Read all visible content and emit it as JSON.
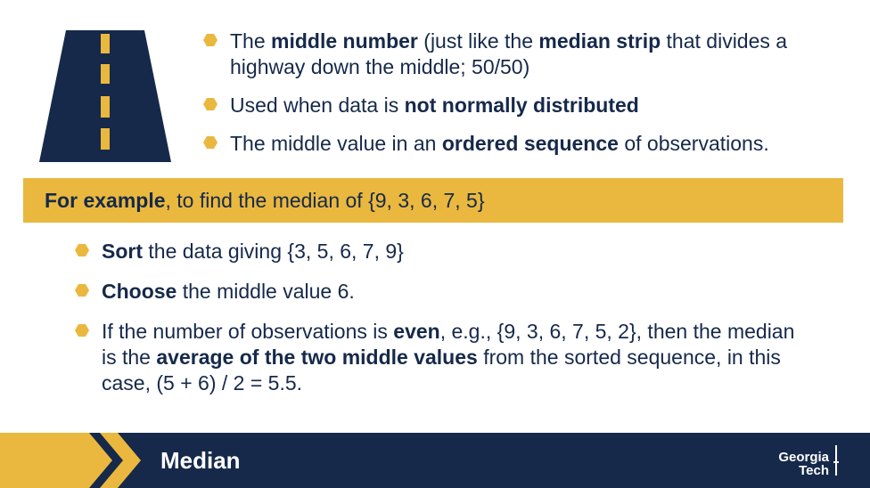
{
  "top_bullets": [
    {
      "segments": [
        {
          "text": "The ",
          "bold": false
        },
        {
          "text": "middle number",
          "bold": true
        },
        {
          "text": " (just like the ",
          "bold": false
        },
        {
          "text": "median strip",
          "bold": true
        },
        {
          "text": " that divides a highway down the middle; 50/50)",
          "bold": false
        }
      ]
    },
    {
      "segments": [
        {
          "text": "Used when data is ",
          "bold": false
        },
        {
          "text": "not normally distributed",
          "bold": true
        }
      ]
    },
    {
      "segments": [
        {
          "text": "The middle value in an ",
          "bold": false
        },
        {
          "text": "ordered sequence",
          "bold": true
        },
        {
          "text": " of observations.",
          "bold": false
        }
      ]
    }
  ],
  "banner": {
    "bold": "For example",
    "rest": ", to find the median of {9, 3, 6, 7, 5}"
  },
  "bottom_bullets": [
    {
      "segments": [
        {
          "text": "Sort",
          "bold": true
        },
        {
          "text": " the data giving {3, 5, 6, 7, 9}",
          "bold": false
        }
      ]
    },
    {
      "segments": [
        {
          "text": "Choose",
          "bold": true
        },
        {
          "text": " the middle value 6.",
          "bold": false
        }
      ]
    },
    {
      "segments": [
        {
          "text": "If the number of observations is ",
          "bold": false
        },
        {
          "text": "even",
          "bold": true
        },
        {
          "text": ", e.g., {9, 3, 6, 7, 5, 2}, then the median is the ",
          "bold": false
        },
        {
          "text": "average of the two middle values",
          "bold": true
        },
        {
          "text": " from the sorted sequence, in this case, (5 + 6) / 2 = 5.5.",
          "bold": false
        }
      ]
    }
  ],
  "footer": {
    "title": "Median",
    "logo_line1": "Georgia",
    "logo_line2": "Tech"
  },
  "colors": {
    "navy": "#16294a",
    "gold": "#eab83e",
    "bullet": "#eab83e"
  },
  "icons": {
    "road": "highway-road-icon",
    "bullet": "hexagon-bullet-icon",
    "footer_arrows": "chevron-right-icon"
  }
}
